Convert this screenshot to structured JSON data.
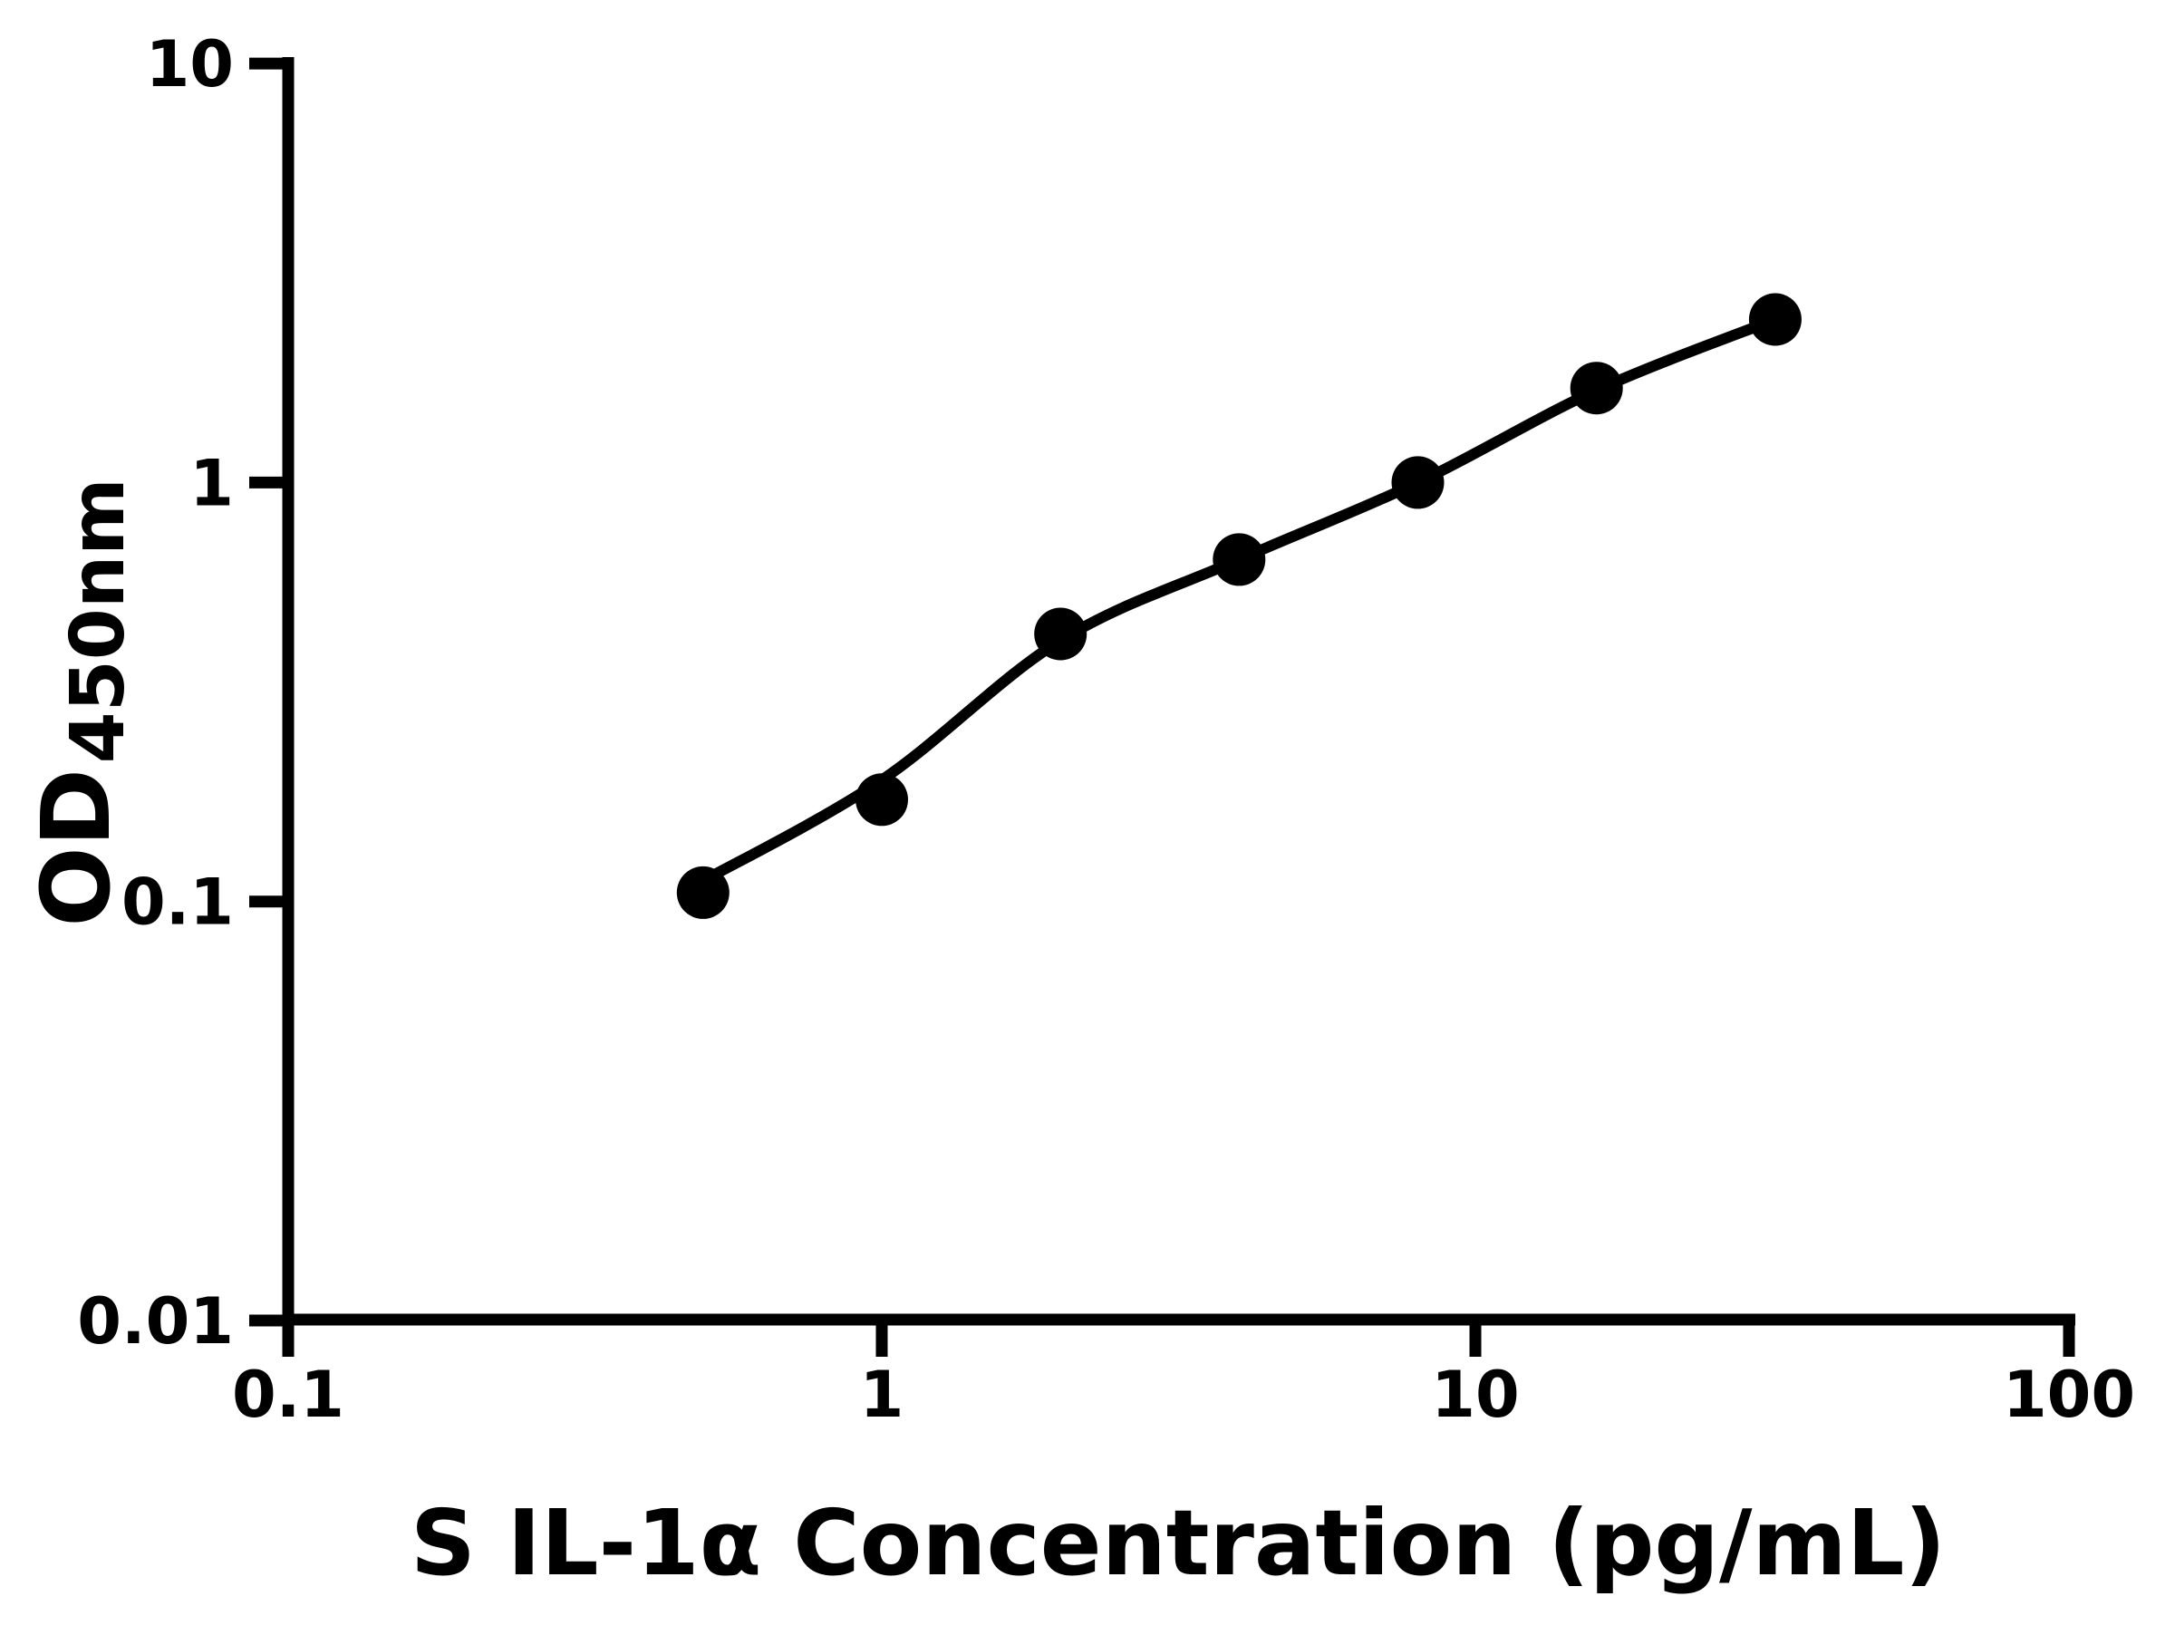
{
  "chart_data": {
    "type": "scatter",
    "title": "",
    "xlabel": "S IL-1α Concentration (pg/mL)",
    "ylabel": "OD450nm",
    "ylabel_parts": {
      "base": "OD",
      "sub": "450nm"
    },
    "x_scale": "log10",
    "y_scale": "log10",
    "xlim": [
      0.1,
      100
    ],
    "ylim": [
      0.01,
      10
    ],
    "x_ticks": {
      "values": [
        0.1,
        1,
        10,
        100
      ],
      "labels": [
        "0.1",
        "1",
        "10",
        "100"
      ]
    },
    "y_ticks": {
      "values": [
        10,
        1,
        0.1,
        0.01
      ],
      "labels": [
        "10",
        "1",
        "0.1",
        "0.01"
      ]
    },
    "grid": false,
    "legend_position": "none",
    "axis_color": "#000000",
    "background_color": "#ffffff",
    "series": [
      {
        "name": "standard-curve-points",
        "marker": "circle",
        "color": "#000000",
        "x": [
          0.5,
          1,
          2,
          4,
          8,
          16,
          32
        ],
        "y": [
          0.105,
          0.175,
          0.435,
          0.655,
          1.0,
          1.68,
          2.45
        ]
      }
    ],
    "fit_curve": {
      "name": "fitted-curve",
      "color": "#000000",
      "x": [
        0.5,
        1,
        2,
        4,
        8,
        16,
        32
      ],
      "y": [
        0.112,
        0.195,
        0.42,
        0.655,
        1.0,
        1.66,
        2.45
      ]
    }
  }
}
